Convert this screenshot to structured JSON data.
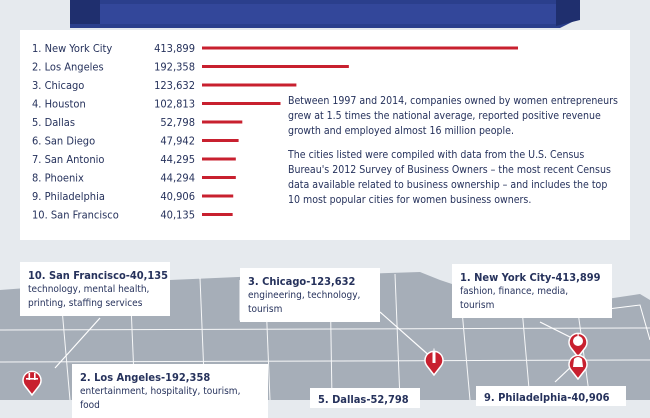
{
  "colors": {
    "navy": "#26325c",
    "red": "#c8202f",
    "banner": "#2b3f8c",
    "map_land": "#a6aeb8",
    "map_bg": "#e6eaee"
  },
  "chart_data": {
    "type": "bar",
    "orientation": "horizontal",
    "categories": [
      "1. New York City",
      "2. Los Angeles",
      "3. Chicago",
      "4. Houston",
      "5. Dallas",
      "6. San Diego",
      "7. San Antonio",
      "8. Phoenix",
      "9. Philadelphia",
      "10. San Francisco"
    ],
    "values": [
      413899,
      192358,
      123632,
      102813,
      52798,
      47942,
      44295,
      44294,
      40906,
      40135
    ],
    "value_labels": [
      "413,899",
      "192,358",
      "123,632",
      "102,813",
      "52,798",
      "47,942",
      "44,295",
      "44,294",
      "40,906",
      "40,135"
    ],
    "title": "",
    "xlabel": "",
    "ylabel": "",
    "grid": false,
    "xlim": [
      0,
      413899
    ]
  },
  "description": {
    "p1": "Between 1997 and 2014, companies owned by women entrepreneurs grew at 1.5 times the national average, reported positive revenue growth and employed almost 16 million people.",
    "p2": "The cities listed were compiled with data from the U.S. Census Bureau's 2012 Survey of Business Owners – the most recent Census data available related to business ownership – and includes the top 10 most popular cities for women business owners."
  },
  "map": {
    "callouts": [
      {
        "title": "10. San Francisco-40,135",
        "sub": "technology, mental health, printing, staffing services"
      },
      {
        "title": "3. Chicago-123,632",
        "sub": "engineering, technology, tourism"
      },
      {
        "title": "1. New York City-413,899",
        "sub": "fashion, finance, media, tourism"
      },
      {
        "title": "2. Los Angeles-192,358",
        "sub": "entertainment, hospitality, tourism, food"
      },
      {
        "title": "5. Dallas-52,798",
        "sub": ""
      },
      {
        "title": "9. Philadelphia-40,906",
        "sub": ""
      }
    ],
    "pin_icons": [
      "bridge-icon",
      "skyline-icon",
      "apple-icon",
      "liberty-bell-icon"
    ]
  }
}
